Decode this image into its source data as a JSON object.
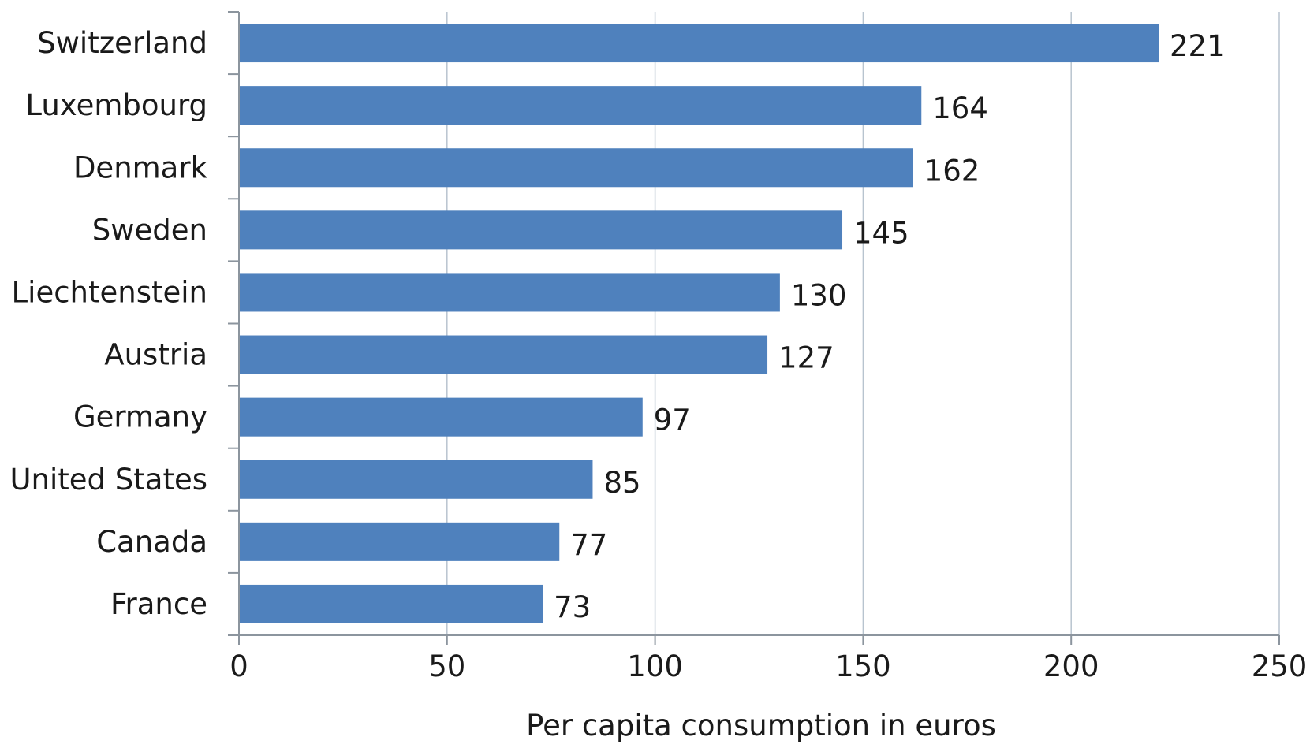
{
  "chart_data": {
    "type": "bar",
    "orientation": "horizontal",
    "title": "",
    "xlabel": "Per capita consumption in euros",
    "ylabel": "",
    "xlim": [
      0,
      250
    ],
    "x_ticks": [
      "0",
      "50",
      "100",
      "150",
      "200",
      "250"
    ],
    "tick_values": [
      0,
      50,
      100,
      150,
      200,
      250
    ],
    "grid": true,
    "legend": "none",
    "bar_color": "#4f81bd",
    "categories": [
      "Switzerland",
      "Luxembourg",
      "Denmark",
      "Sweden",
      "Liechtenstein",
      "Austria",
      "Germany",
      "United States",
      "Canada",
      "France"
    ],
    "values": [
      221,
      164,
      162,
      145,
      130,
      127,
      97,
      85,
      77,
      73
    ],
    "value_labels": [
      "221",
      "164",
      "162",
      "145",
      "130",
      "127",
      "97",
      "85",
      "77",
      "73"
    ]
  }
}
